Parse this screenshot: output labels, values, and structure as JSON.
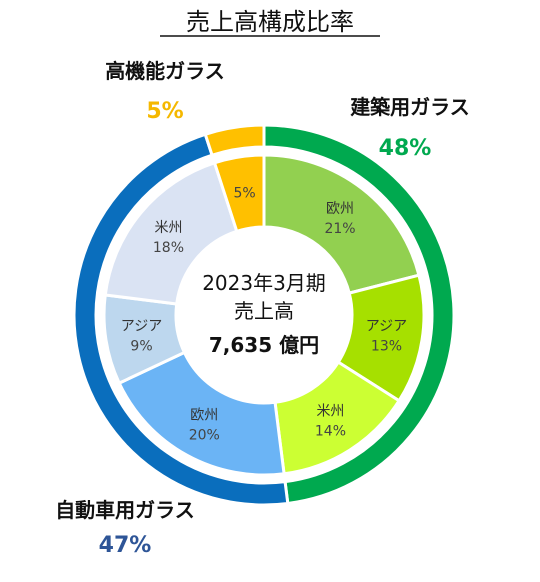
{
  "chart_data": {
    "type": "pie",
    "variant": "nested-donut",
    "title": "売上高構成比率",
    "center": {
      "period": "2023年3月期",
      "label": "売上高",
      "total": "7,635 億円"
    },
    "outer_ring": [
      {
        "name": "建築用ガラス",
        "value": 48,
        "label": "48%",
        "color": "#00a94f",
        "label_color": "#00a94f"
      },
      {
        "name": "自動車用ガラス",
        "value": 47,
        "label": "47%",
        "color": "#0a6ebd",
        "label_color": "#2e5597"
      },
      {
        "name": "高機能ガラス",
        "value": 5,
        "label": "5%",
        "color": "#ffc000",
        "label_color": "#f5b800"
      }
    ],
    "inner_ring": [
      {
        "group": "建築用ガラス",
        "name": "欧州",
        "value": 21,
        "label": "21%",
        "color": "#92d050"
      },
      {
        "group": "建築用ガラス",
        "name": "アジア",
        "value": 13,
        "label": "13%",
        "color": "#a6e000"
      },
      {
        "group": "建築用ガラス",
        "name": "米州",
        "value": 14,
        "label": "14%",
        "color": "#ccff33"
      },
      {
        "group": "自動車用ガラス",
        "name": "欧州",
        "value": 20,
        "label": "20%",
        "color": "#6bb4f5"
      },
      {
        "group": "自動車用ガラス",
        "name": "アジア",
        "value": 9,
        "label": "9%",
        "color": "#bdd7ee"
      },
      {
        "group": "自動車用ガラス",
        "name": "米州",
        "value": 18,
        "label": "18%",
        "color": "#dae3f3"
      },
      {
        "group": "高機能ガラス",
        "name": "",
        "value": 5,
        "label": "5%",
        "color": "#ffc000"
      }
    ]
  }
}
